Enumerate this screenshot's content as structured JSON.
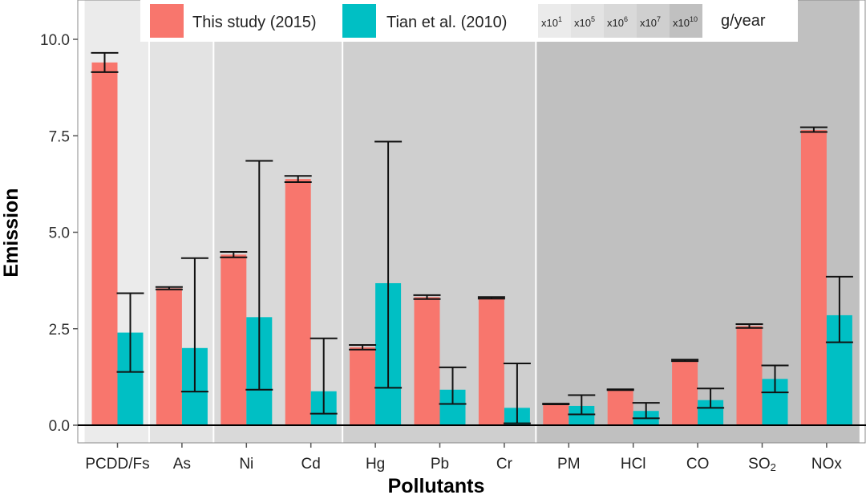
{
  "chart_data": {
    "type": "bar",
    "xlabel": "Pollutants",
    "ylabel": "Emission",
    "ylim": [
      0,
      10.5
    ],
    "yticks": [
      "0.0",
      "2.5",
      "5.0",
      "7.5",
      "10.0"
    ],
    "ytick_values": [
      0,
      2.5,
      5,
      7.5,
      10
    ],
    "categories": [
      "PCDD/Fs",
      "As",
      "Ni",
      "Cd",
      "Hg",
      "Pb",
      "Cr",
      "PM",
      "HCl",
      "CO",
      "SO2",
      "NOx"
    ],
    "series": [
      {
        "name": "This study (2015)",
        "color": "#f8766d",
        "values": [
          9.4,
          3.55,
          4.42,
          6.38,
          2.02,
          3.32,
          3.3,
          0.55,
          0.92,
          1.68,
          2.57,
          7.65
        ],
        "err_low": [
          9.15,
          3.52,
          4.35,
          6.3,
          1.96,
          3.27,
          3.28,
          0.54,
          0.91,
          1.66,
          2.52,
          7.6
        ],
        "err_high": [
          9.65,
          3.58,
          4.49,
          6.46,
          2.08,
          3.37,
          3.32,
          0.56,
          0.93,
          1.7,
          2.62,
          7.72
        ]
      },
      {
        "name": "Tian et al. (2010)",
        "color": "#00bfc4",
        "values": [
          2.4,
          2.0,
          2.8,
          0.88,
          3.68,
          0.92,
          0.45,
          0.5,
          0.37,
          0.65,
          1.2,
          2.85
        ],
        "err_low": [
          1.38,
          0.87,
          0.92,
          0.3,
          0.97,
          0.55,
          0.05,
          0.28,
          0.18,
          0.45,
          0.85,
          2.15
        ],
        "err_high": [
          3.42,
          4.33,
          6.85,
          2.25,
          7.35,
          1.5,
          1.6,
          0.78,
          0.58,
          0.95,
          1.55,
          3.85
        ]
      }
    ],
    "groups": [
      {
        "label": "x10",
        "sup": "1",
        "from": 0,
        "to": 0,
        "color": "#ebebeb"
      },
      {
        "label": "x10",
        "sup": "5",
        "from": 1,
        "to": 1,
        "color": "#e3e3e3"
      },
      {
        "label": "x10",
        "sup": "6",
        "from": 2,
        "to": 3,
        "color": "#d9d9d9"
      },
      {
        "label": "x10",
        "sup": "7",
        "from": 4,
        "to": 6,
        "color": "#cfcfcf"
      },
      {
        "label": "x10",
        "sup": "10",
        "from": 7,
        "to": 11,
        "color": "#c0c0c0"
      }
    ],
    "unit_label": "g/year",
    "legend_position": "top",
    "grid": false
  }
}
